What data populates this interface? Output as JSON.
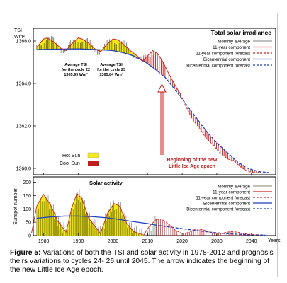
{
  "top_panel": {
    "title": "Total solar irradiance",
    "ylabel_line1": "TSI",
    "ylabel_line2": "Wm²",
    "yticks": [
      "1366.0",
      "1364.0",
      "1362.0",
      "1360.0"
    ],
    "legend": [
      {
        "label": "Monthly average",
        "color": "#000000",
        "style": "thin"
      },
      {
        "label": "11-year component",
        "color": "#d42020",
        "style": "solid"
      },
      {
        "label": "11-year component forecast",
        "color": "#d42020",
        "style": "dashed"
      },
      {
        "label": "Bicentennial component",
        "color": "#1f3fbf",
        "style": "solid"
      },
      {
        "label": "Bicentennial component forecast",
        "color": "#1f3fbf",
        "style": "dashed"
      }
    ],
    "annotation_c22": [
      "Average TSI",
      "for the cycle 22",
      "1365.99 Wm²"
    ],
    "annotation_c23": [
      "Average TSI",
      "for the cycle 23",
      "1365.84 Wm²"
    ],
    "hot_sun_label": "Hot Sun",
    "cool_sun_label": "Cool Sun",
    "arrow_label_line1": "Beginning of the new",
    "arrow_label_line2": "Little Ice Age epoch"
  },
  "bottom_panel": {
    "title": "Solar activity",
    "ylabel": "Sunspot number",
    "yticks": [
      "200",
      "150",
      "100",
      "50",
      "0"
    ],
    "legend": [
      {
        "label": "Monthly average",
        "color": "#000000",
        "style": "thin"
      },
      {
        "label": "11-year component",
        "color": "#d42020",
        "style": "solid"
      },
      {
        "label": "11-year component forecast",
        "color": "#d42020",
        "style": "dashed"
      },
      {
        "label": "Bicentennial component",
        "color": "#1f3fbf",
        "style": "solid"
      },
      {
        "label": "Bicentennial component forecast",
        "color": "#1f3fbf",
        "style": "dashed"
      }
    ]
  },
  "xticks": [
    "1980",
    "1990",
    "2000",
    "2010",
    "2020",
    "2030",
    "2040"
  ],
  "xlabel": "Years",
  "caption_bold": "Figure 5:",
  "caption_rest": " Variations of both the TSI and solar activity in 1978-2012 and prognosis theirs variations to cycles 24- 26 until 2045. The arrow indicates the beginning of the new Little Ice Age epoch.",
  "colors": {
    "hot_sun": "#f2ea1a",
    "cool_sun": "#c01c1c",
    "eleven_year": "#d42020",
    "bicentennial": "#1f3fbf"
  },
  "chart_data": [
    {
      "type": "line",
      "title": "Total solar irradiance",
      "ylabel": "TSI Wm²",
      "xlabel": "Years",
      "xlim": [
        1977,
        2047
      ],
      "ylim": [
        1359.7,
        1366.6
      ],
      "grid": false,
      "legend_position": "top-right",
      "series": [
        {
          "name": "11-year component",
          "x": [
            1978,
            1980,
            1981,
            1983,
            1985,
            1986.5,
            1988,
            1990,
            1991,
            1993,
            1995,
            1996.5,
            1998,
            2000,
            2001.5,
            2003,
            2005,
            2007,
            2008.5,
            2010,
            2011.5,
            2013,
            2014.5,
            2016,
            2018,
            2019.5
          ],
          "y": [
            1365.7,
            1366.1,
            1366.15,
            1365.95,
            1365.65,
            1365.55,
            1365.85,
            1366.15,
            1366.1,
            1365.9,
            1365.6,
            1365.5,
            1365.8,
            1366.1,
            1366.05,
            1365.85,
            1365.55,
            1365.3,
            1365.05,
            1365.3,
            1365.55,
            1365.4,
            1365.0,
            1364.5,
            1363.9,
            1363.5
          ]
        },
        {
          "name": "11-year component forecast",
          "x": [
            2019.5,
            2021,
            2023,
            2025,
            2027,
            2029,
            2031,
            2033,
            2035,
            2037,
            2039,
            2041,
            2043,
            2045
          ],
          "y": [
            1363.5,
            1362.95,
            1362.3,
            1361.9,
            1361.4,
            1361.1,
            1360.7,
            1360.45,
            1360.35,
            1360.05,
            1359.85,
            1359.8,
            1359.78,
            1359.78
          ]
        },
        {
          "name": "Bicentennial component",
          "x": [
            1978,
            1985,
            1990,
            1995,
            2000,
            2003,
            2006,
            2009,
            2012
          ],
          "y": [
            1365.6,
            1365.62,
            1365.63,
            1365.6,
            1365.55,
            1365.45,
            1365.3,
            1365.05,
            1364.7
          ]
        },
        {
          "name": "Bicentennial component forecast",
          "x": [
            2012,
            2015,
            2018,
            2021,
            2024,
            2027,
            2030,
            2033,
            2036,
            2039,
            2042,
            2045
          ],
          "y": [
            1364.7,
            1364.3,
            1363.7,
            1363.05,
            1362.4,
            1361.75,
            1361.2,
            1360.75,
            1360.3,
            1360.0,
            1359.85,
            1359.8
          ]
        }
      ],
      "annotations": [
        {
          "text": "Average TSI for the cycle 22 1365.99 Wm²",
          "x": 1992
        },
        {
          "text": "Average TSI for the cycle 23 1365.84 Wm²",
          "x": 2002
        },
        {
          "text": "Beginning of the new Little Ice Age epoch",
          "x": 2014
        }
      ]
    },
    {
      "type": "line",
      "title": "Solar activity",
      "ylabel": "Sunspot number",
      "xlabel": "Years",
      "xlim": [
        1977,
        2047
      ],
      "ylim": [
        0,
        220
      ],
      "grid": false,
      "legend_position": "top-right",
      "series": [
        {
          "name": "11-year component",
          "x": [
            1976.5,
            1978,
            1979.9,
            1982,
            1984,
            1986.5,
            1988,
            1989.6,
            1991,
            1993,
            1996.4,
            1998.5,
            2000.3,
            2002,
            2004,
            2006,
            2008.9,
            2010.5,
            2012.5
          ],
          "y": [
            10,
            110,
            155,
            115,
            55,
            13,
            100,
            158,
            140,
            65,
            8,
            85,
            120,
            110,
            45,
            15,
            2,
            35,
            60
          ]
        },
        {
          "name": "11-year component forecast",
          "x": [
            2012.5,
            2014,
            2016,
            2018,
            2020,
            2022,
            2024,
            2026,
            2028,
            2030,
            2032,
            2034,
            2036,
            2038,
            2040,
            2042
          ],
          "y": [
            60,
            62,
            45,
            20,
            8,
            12,
            25,
            22,
            12,
            5,
            10,
            15,
            13,
            7,
            4,
            3
          ]
        },
        {
          "name": "Bicentennial component",
          "x": [
            1978,
            1982,
            1986,
            1990,
            1994,
            1998,
            2002,
            2006,
            2010,
            2012
          ],
          "y": [
            65,
            70,
            73,
            73,
            71,
            67,
            60,
            52,
            45,
            40
          ]
        },
        {
          "name": "Bicentennial component forecast",
          "x": [
            2012,
            2016,
            2020,
            2024,
            2028,
            2032,
            2036,
            2040,
            2044
          ],
          "y": [
            40,
            33,
            26,
            19,
            13,
            8,
            5,
            3,
            2
          ]
        }
      ]
    }
  ]
}
